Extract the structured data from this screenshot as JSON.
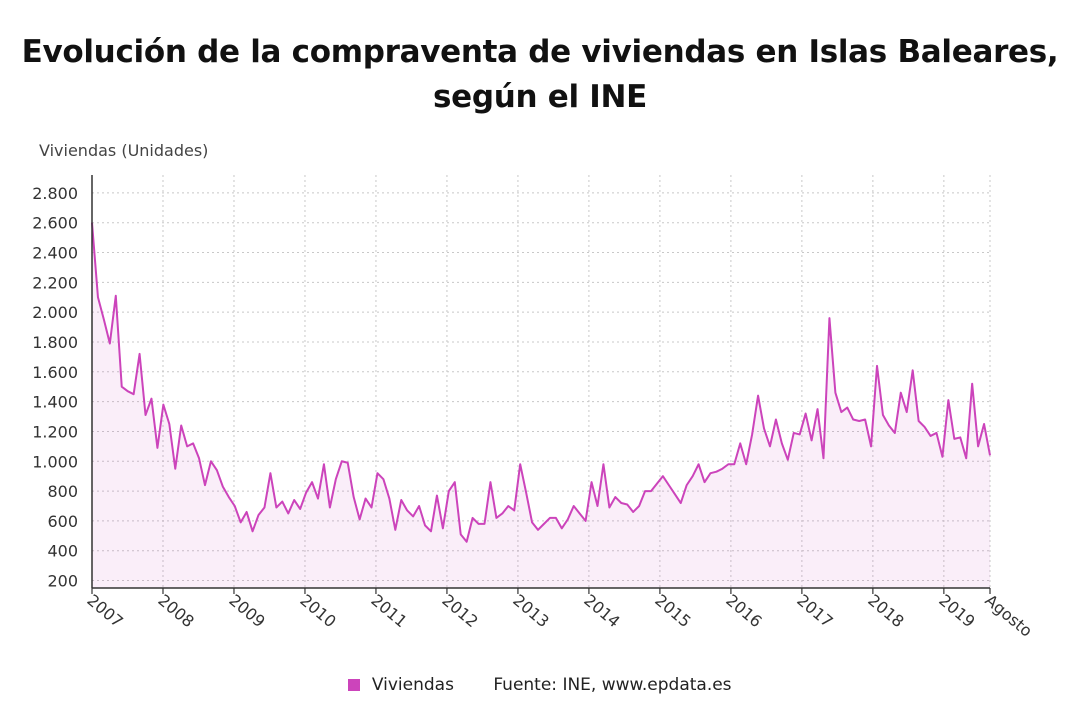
{
  "chart_data": {
    "type": "area",
    "title_line1": "Evolución de la compraventa de viviendas en Islas Baleares,",
    "title_line2": "según el INE",
    "ylabel": "Viviendas (Unidades)",
    "ylim": [
      150,
      2920
    ],
    "yticks": [
      200,
      400,
      600,
      800,
      1000,
      1200,
      1400,
      1600,
      1800,
      2000,
      2200,
      2400,
      2600,
      2800
    ],
    "ytick_labels": [
      "200",
      "400",
      "600",
      "800",
      "1.000",
      "1.200",
      "1.400",
      "1.600",
      "1.800",
      "2.000",
      "2.200",
      "2.400",
      "2.600",
      "2.800"
    ],
    "xtick_labels": [
      "2007",
      "2008",
      "2009",
      "2010",
      "2011",
      "2012",
      "2013",
      "2014",
      "2015",
      "2016",
      "2017",
      "2018",
      "2019",
      "Agosto"
    ],
    "grid": true,
    "legend_position": "bottom",
    "series": [
      {
        "name": "Viviendas",
        "color": "#cc44bb",
        "values": [
          2600,
          2100,
          1950,
          1790,
          2110,
          1500,
          1470,
          1450,
          1720,
          1310,
          1420,
          1090,
          1380,
          1250,
          950,
          1240,
          1100,
          1120,
          1020,
          840,
          1000,
          940,
          830,
          760,
          700,
          590,
          660,
          530,
          640,
          690,
          920,
          690,
          730,
          650,
          740,
          680,
          790,
          860,
          750,
          980,
          690,
          880,
          1000,
          990,
          760,
          610,
          750,
          690,
          920,
          880,
          750,
          540,
          740,
          670,
          630,
          700,
          570,
          530,
          770,
          550,
          800,
          860,
          510,
          460,
          620,
          580,
          580,
          860,
          620,
          650,
          700,
          670,
          980,
          790,
          590,
          540,
          580,
          620,
          620,
          550,
          610,
          700,
          650,
          600,
          860,
          700,
          980,
          690,
          760,
          720,
          710,
          660,
          700,
          800,
          800,
          850,
          900,
          840,
          780,
          720,
          840,
          900,
          980,
          860,
          920,
          930,
          950,
          980,
          980,
          1120,
          980,
          1180,
          1440,
          1220,
          1100,
          1280,
          1120,
          1010,
          1190,
          1180,
          1320,
          1140,
          1350,
          1020,
          1960,
          1460,
          1330,
          1360,
          1280,
          1270,
          1280,
          1100,
          1640,
          1310,
          1240,
          1190,
          1460,
          1330,
          1610,
          1270,
          1230,
          1170,
          1190,
          1030,
          1410,
          1150,
          1160,
          1020,
          1520,
          1100,
          1250,
          1040
        ]
      }
    ],
    "source": "Fuente: INE, www.epdata.es"
  }
}
